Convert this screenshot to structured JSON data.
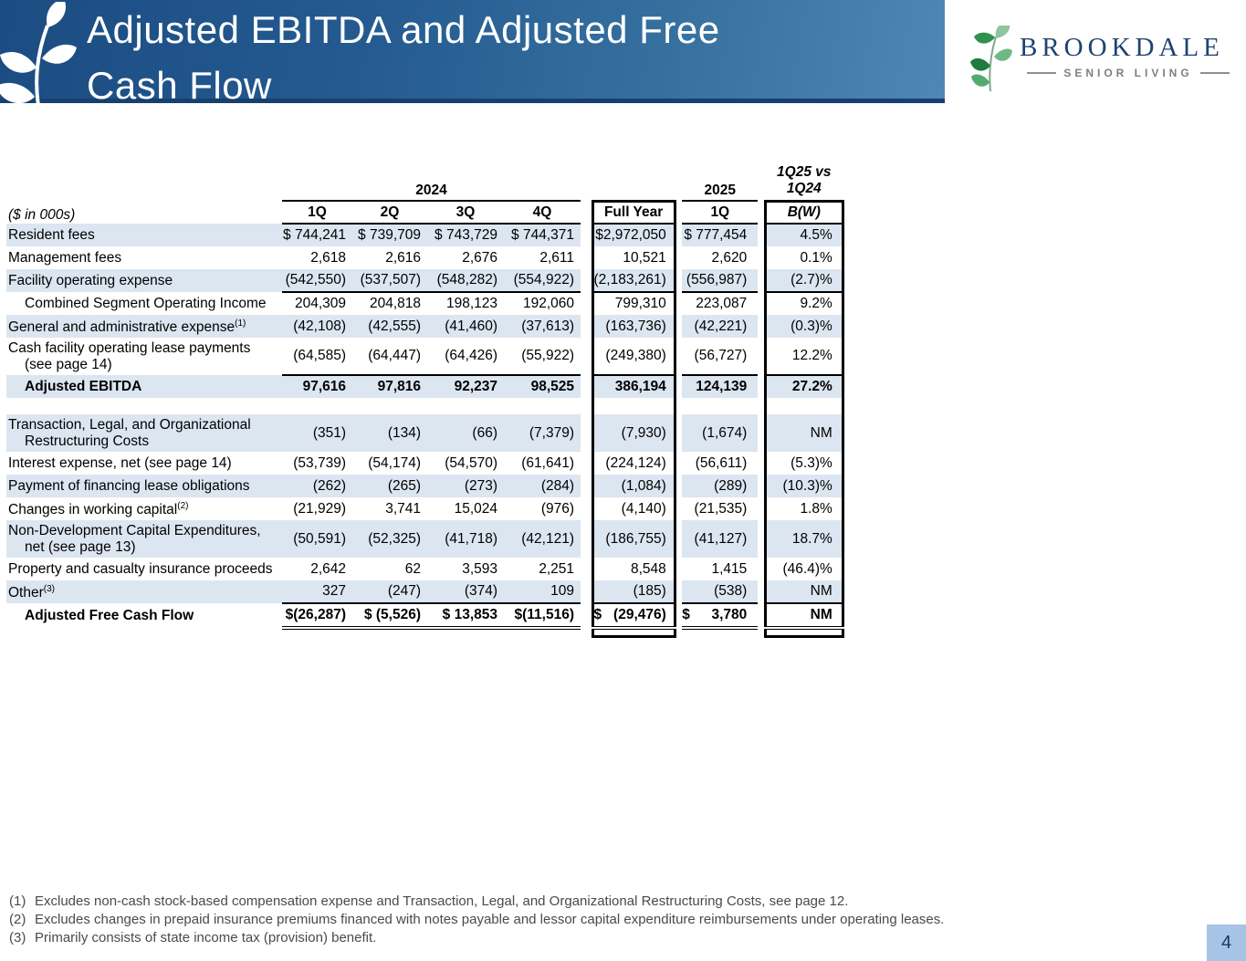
{
  "header": {
    "title_line1": "Adjusted EBITDA and Adjusted Free",
    "title_line2": "Cash Flow",
    "logo": {
      "name": "BROOKDALE",
      "tagline": "SENIOR LIVING"
    }
  },
  "table": {
    "units_label": "($ in 000s)",
    "year_2024_label": "2024",
    "year_2025_label": "2025",
    "compare_label_line1": "1Q25 vs",
    "compare_label_line2": "1Q24",
    "columns": [
      "1Q",
      "2Q",
      "3Q",
      "4Q",
      "Full Year",
      "1Q",
      "B(W)"
    ],
    "rows": [
      {
        "label": "Resident fees",
        "shaded": true,
        "values": [
          "$ 744,241",
          "$ 739,709",
          "$ 743,729",
          "$ 744,371",
          "$2,972,050",
          "$ 777,454",
          "4.5%"
        ]
      },
      {
        "label": "Management fees",
        "values": [
          "2,618",
          "2,616",
          "2,676",
          "2,611",
          "10,521",
          "2,620",
          "0.1%"
        ]
      },
      {
        "label": "Facility operating expense",
        "shaded": true,
        "values": [
          "(542,550)",
          "(537,507)",
          "(548,282)",
          "(554,922)",
          "(2,183,261)",
          "(556,987)",
          "(2.7)%"
        ]
      },
      {
        "label": "Combined Segment Operating Income",
        "indent": true,
        "top_border": true,
        "values": [
          "204,309",
          "204,818",
          "198,123",
          "192,060",
          "799,310",
          "223,087",
          "9.2%"
        ]
      },
      {
        "label": "General and administrative expense",
        "sup": "(1)",
        "shaded": true,
        "values": [
          "(42,108)",
          "(42,555)",
          "(41,460)",
          "(37,613)",
          "(163,736)",
          "(42,221)",
          "(0.3)%"
        ]
      },
      {
        "label": "Cash facility operating lease payments",
        "label2": "(see page 14)",
        "two_line": true,
        "values": [
          "(64,585)",
          "(64,447)",
          "(64,426)",
          "(55,922)",
          "(249,380)",
          "(56,727)",
          "12.2%"
        ]
      },
      {
        "label": "Adjusted EBITDA",
        "indent": true,
        "bold": true,
        "shaded": true,
        "top_border": true,
        "values": [
          "97,616",
          "97,816",
          "92,237",
          "98,525",
          "386,194",
          "124,139",
          "27.2%"
        ]
      },
      {
        "gap": true
      },
      {
        "label": "Transaction, Legal, and Organizational",
        "label2": "Restructuring Costs",
        "two_line": true,
        "shaded": true,
        "values": [
          "(351)",
          "(134)",
          "(66)",
          "(7,379)",
          "(7,930)",
          "(1,674)",
          "NM"
        ]
      },
      {
        "label": "Interest expense, net (see page 14)",
        "values": [
          "(53,739)",
          "(54,174)",
          "(54,570)",
          "(61,641)",
          "(224,124)",
          "(56,611)",
          "(5.3)%"
        ]
      },
      {
        "label": "Payment of financing lease obligations",
        "shaded": true,
        "values": [
          "(262)",
          "(265)",
          "(273)",
          "(284)",
          "(1,084)",
          "(289)",
          "(10.3)%"
        ]
      },
      {
        "label": "Changes in working capital",
        "sup": "(2)",
        "values": [
          "(21,929)",
          "3,741",
          "15,024",
          "(976)",
          "(4,140)",
          "(21,535)",
          "1.8%"
        ]
      },
      {
        "label": "Non-Development Capital Expenditures,",
        "label2": "net (see page 13)",
        "two_line": true,
        "shaded": true,
        "values": [
          "(50,591)",
          "(52,325)",
          "(41,718)",
          "(42,121)",
          "(186,755)",
          "(41,127)",
          "18.7%"
        ]
      },
      {
        "label": "Property and casualty insurance proceeds",
        "values": [
          "2,642",
          "62",
          "3,593",
          "2,251",
          "8,548",
          "1,415",
          "(46.4)%"
        ]
      },
      {
        "label": "Other",
        "sup": "(3)",
        "shaded": true,
        "values": [
          "327",
          "(247)",
          "(374)",
          "109",
          "(185)",
          "(538)",
          "NM"
        ]
      },
      {
        "label": "Adjusted Free Cash Flow",
        "indent": true,
        "bold": true,
        "top_border": true,
        "bottom_double": true,
        "last": true,
        "values": [
          "$(26,287)",
          "$ (5,526)",
          "$ 13,853",
          "$(11,516)",
          "$\t(29,476)",
          "$\t3,780",
          "NM"
        ]
      }
    ]
  },
  "footnotes": [
    {
      "num": "(1)",
      "text": "Excludes non-cash stock-based compensation expense and Transaction, Legal, and Organizational Restructuring Costs, see page 12."
    },
    {
      "num": "(2)",
      "text": "Excludes changes in prepaid insurance premiums financed with notes payable and lessor capital expenditure reimbursements under operating leases."
    },
    {
      "num": "(3)",
      "text": "Primarily consists of state income tax (provision) benefit."
    }
  ],
  "page_number": "4",
  "colors": {
    "banner_dark_blue": "#1b4c82",
    "banner_light_blue": "#4f87b6",
    "banner_bottom_rule": "#16406f",
    "row_shading": "#dce6f1",
    "brand_blue": "#1d4373",
    "tagline_gray": "#7b7f84",
    "page_badge_bg": "#a7c4e6",
    "footnote_gray": "#4a4a4a"
  }
}
